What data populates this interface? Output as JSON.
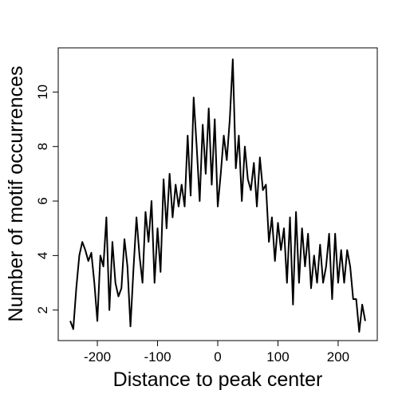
{
  "chart_data": {
    "type": "line",
    "xlabel": "Distance to peak center",
    "ylabel": "Number of motif occurrences",
    "x": [
      -245,
      -240,
      -235,
      -230,
      -225,
      -220,
      -215,
      -210,
      -205,
      -200,
      -195,
      -190,
      -185,
      -180,
      -175,
      -170,
      -165,
      -160,
      -155,
      -150,
      -145,
      -140,
      -135,
      -130,
      -125,
      -120,
      -115,
      -110,
      -105,
      -100,
      -95,
      -90,
      -85,
      -80,
      -75,
      -70,
      -65,
      -60,
      -55,
      -50,
      -45,
      -40,
      -35,
      -30,
      -25,
      -20,
      -15,
      -10,
      -5,
      0,
      5,
      10,
      15,
      20,
      25,
      30,
      35,
      40,
      45,
      50,
      55,
      60,
      65,
      70,
      75,
      80,
      85,
      90,
      95,
      100,
      105,
      110,
      115,
      120,
      125,
      130,
      135,
      140,
      145,
      150,
      155,
      160,
      165,
      170,
      175,
      180,
      185,
      190,
      195,
      200,
      205,
      210,
      215,
      220,
      225,
      230,
      235,
      240,
      245
    ],
    "series": [
      {
        "color": "#000000",
        "values": [
          1.6,
          1.3,
          2.8,
          4.0,
          4.5,
          4.2,
          3.8,
          4.1,
          3.0,
          1.6,
          4.0,
          3.6,
          5.4,
          2.0,
          4.5,
          3.0,
          2.5,
          2.8,
          4.6,
          3.6,
          1.4,
          3.5,
          5.4,
          4.0,
          3.0,
          5.6,
          4.5,
          6.0,
          3.0,
          5.0,
          3.4,
          6.8,
          5.0,
          7.0,
          5.4,
          6.6,
          5.8,
          6.6,
          5.8,
          8.4,
          6.2,
          9.8,
          8.0,
          6.0,
          8.8,
          7.0,
          9.4,
          6.6,
          9.0,
          5.8,
          7.0,
          8.4,
          7.5,
          9.0,
          11.2,
          7.2,
          8.4,
          6.0,
          8.0,
          6.8,
          6.4,
          7.4,
          5.8,
          7.6,
          6.4,
          6.6,
          4.5,
          5.4,
          3.8,
          5.2,
          4.2,
          5.0,
          3.0,
          5.4,
          2.2,
          5.6,
          3.0,
          5.0,
          3.6,
          4.8,
          2.8,
          4.0,
          3.0,
          4.4,
          3.0,
          3.6,
          4.8,
          2.4,
          4.8,
          3.0,
          4.2,
          3.0,
          4.2,
          3.6,
          2.4,
          2.4,
          1.2,
          2.2,
          1.6
        ]
      }
    ],
    "xlim": [
      -265,
      265
    ],
    "xticks": [
      -200,
      -100,
      0,
      100,
      200
    ],
    "ylim": [
      0.88,
      11.62
    ],
    "yticks": [
      2,
      4,
      6,
      8,
      10
    ]
  }
}
